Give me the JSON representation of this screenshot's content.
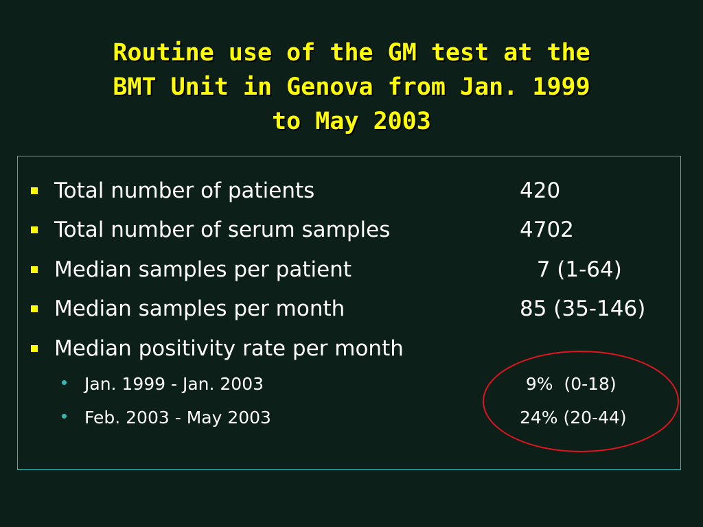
{
  "slide": {
    "title_lines": [
      "Routine use of the GM test at the",
      "BMT Unit in Genova from Jan. 1999",
      "to May 2003"
    ],
    "items": [
      {
        "label": "Total number of patients",
        "value": "420"
      },
      {
        "label": "Total number of serum samples",
        "value": "4702"
      },
      {
        "label": "Median samples per patient",
        "value": "  7 (1-64)"
      },
      {
        "label": "Median samples per month",
        "value": "85 (35-146)"
      },
      {
        "label": "Median positivity rate per month",
        "value": ""
      }
    ],
    "subitems": [
      {
        "label": "Jan. 1999 - Jan. 2003",
        "value": "  9%  (0-18)"
      },
      {
        "label": "Feb. 2003 - May 2003",
        "value": "24% (20-44)"
      }
    ],
    "colors": {
      "background": "#0c1f18",
      "title": "#ffff00",
      "text": "#ffffff",
      "main_bullet": "#ffff00",
      "sub_bullet": "#35b7b0",
      "box_border": "#35b7b0",
      "highlight_circle": "#e0151f"
    }
  }
}
